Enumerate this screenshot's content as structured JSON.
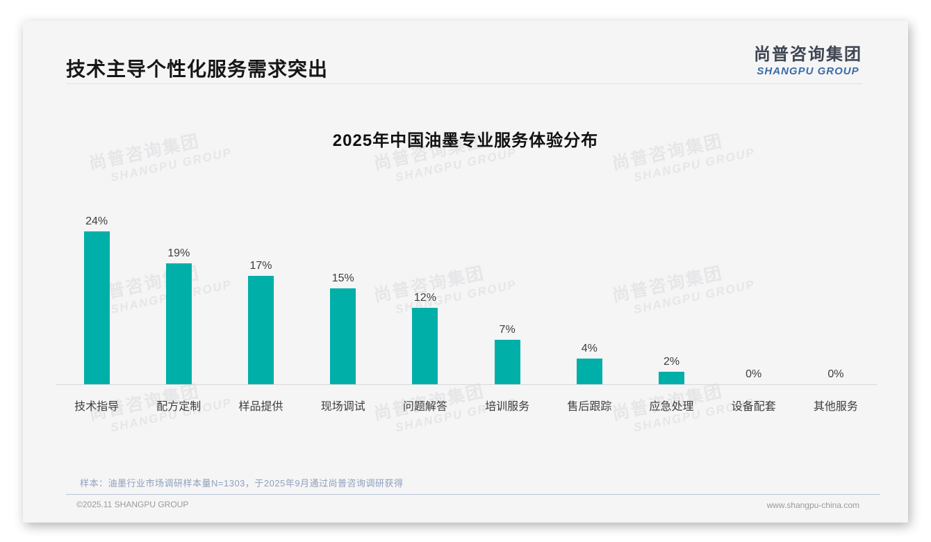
{
  "page": {
    "title": "技术主导个性化服务需求突出",
    "logo": {
      "cn": "尚普咨询集团",
      "en": "SHANGPU GROUP"
    },
    "watermark": {
      "cn": "尚普咨询集团",
      "en": "SHANGPU GROUP"
    },
    "footnote": "样本：油墨行业市场调研样本量N=1303，于2025年9月通过尚普咨询调研获得",
    "footer_left": "©2025.11 SHANGPU GROUP",
    "footer_right": "www.shangpu-china.com",
    "colors": {
      "brand_blue": "#3a6ba5",
      "logo_dark": "#3e4551"
    }
  },
  "chart_data": {
    "type": "bar",
    "title": "2025年中国油墨专业服务体验分布",
    "categories": [
      "技术指导",
      "配方定制",
      "样品提供",
      "现场调试",
      "问题解答",
      "培训服务",
      "售后跟踪",
      "应急处理",
      "设备配套",
      "其他服务"
    ],
    "values": [
      24,
      19,
      17,
      15,
      12,
      7,
      4,
      2,
      0,
      0
    ],
    "unit": "%",
    "value_label_format": "above-bar",
    "bar_color": "#00afa8",
    "ylim": [
      0,
      26
    ],
    "grid": false,
    "legend": "none",
    "axis_line_color": "#d9d9d9"
  }
}
